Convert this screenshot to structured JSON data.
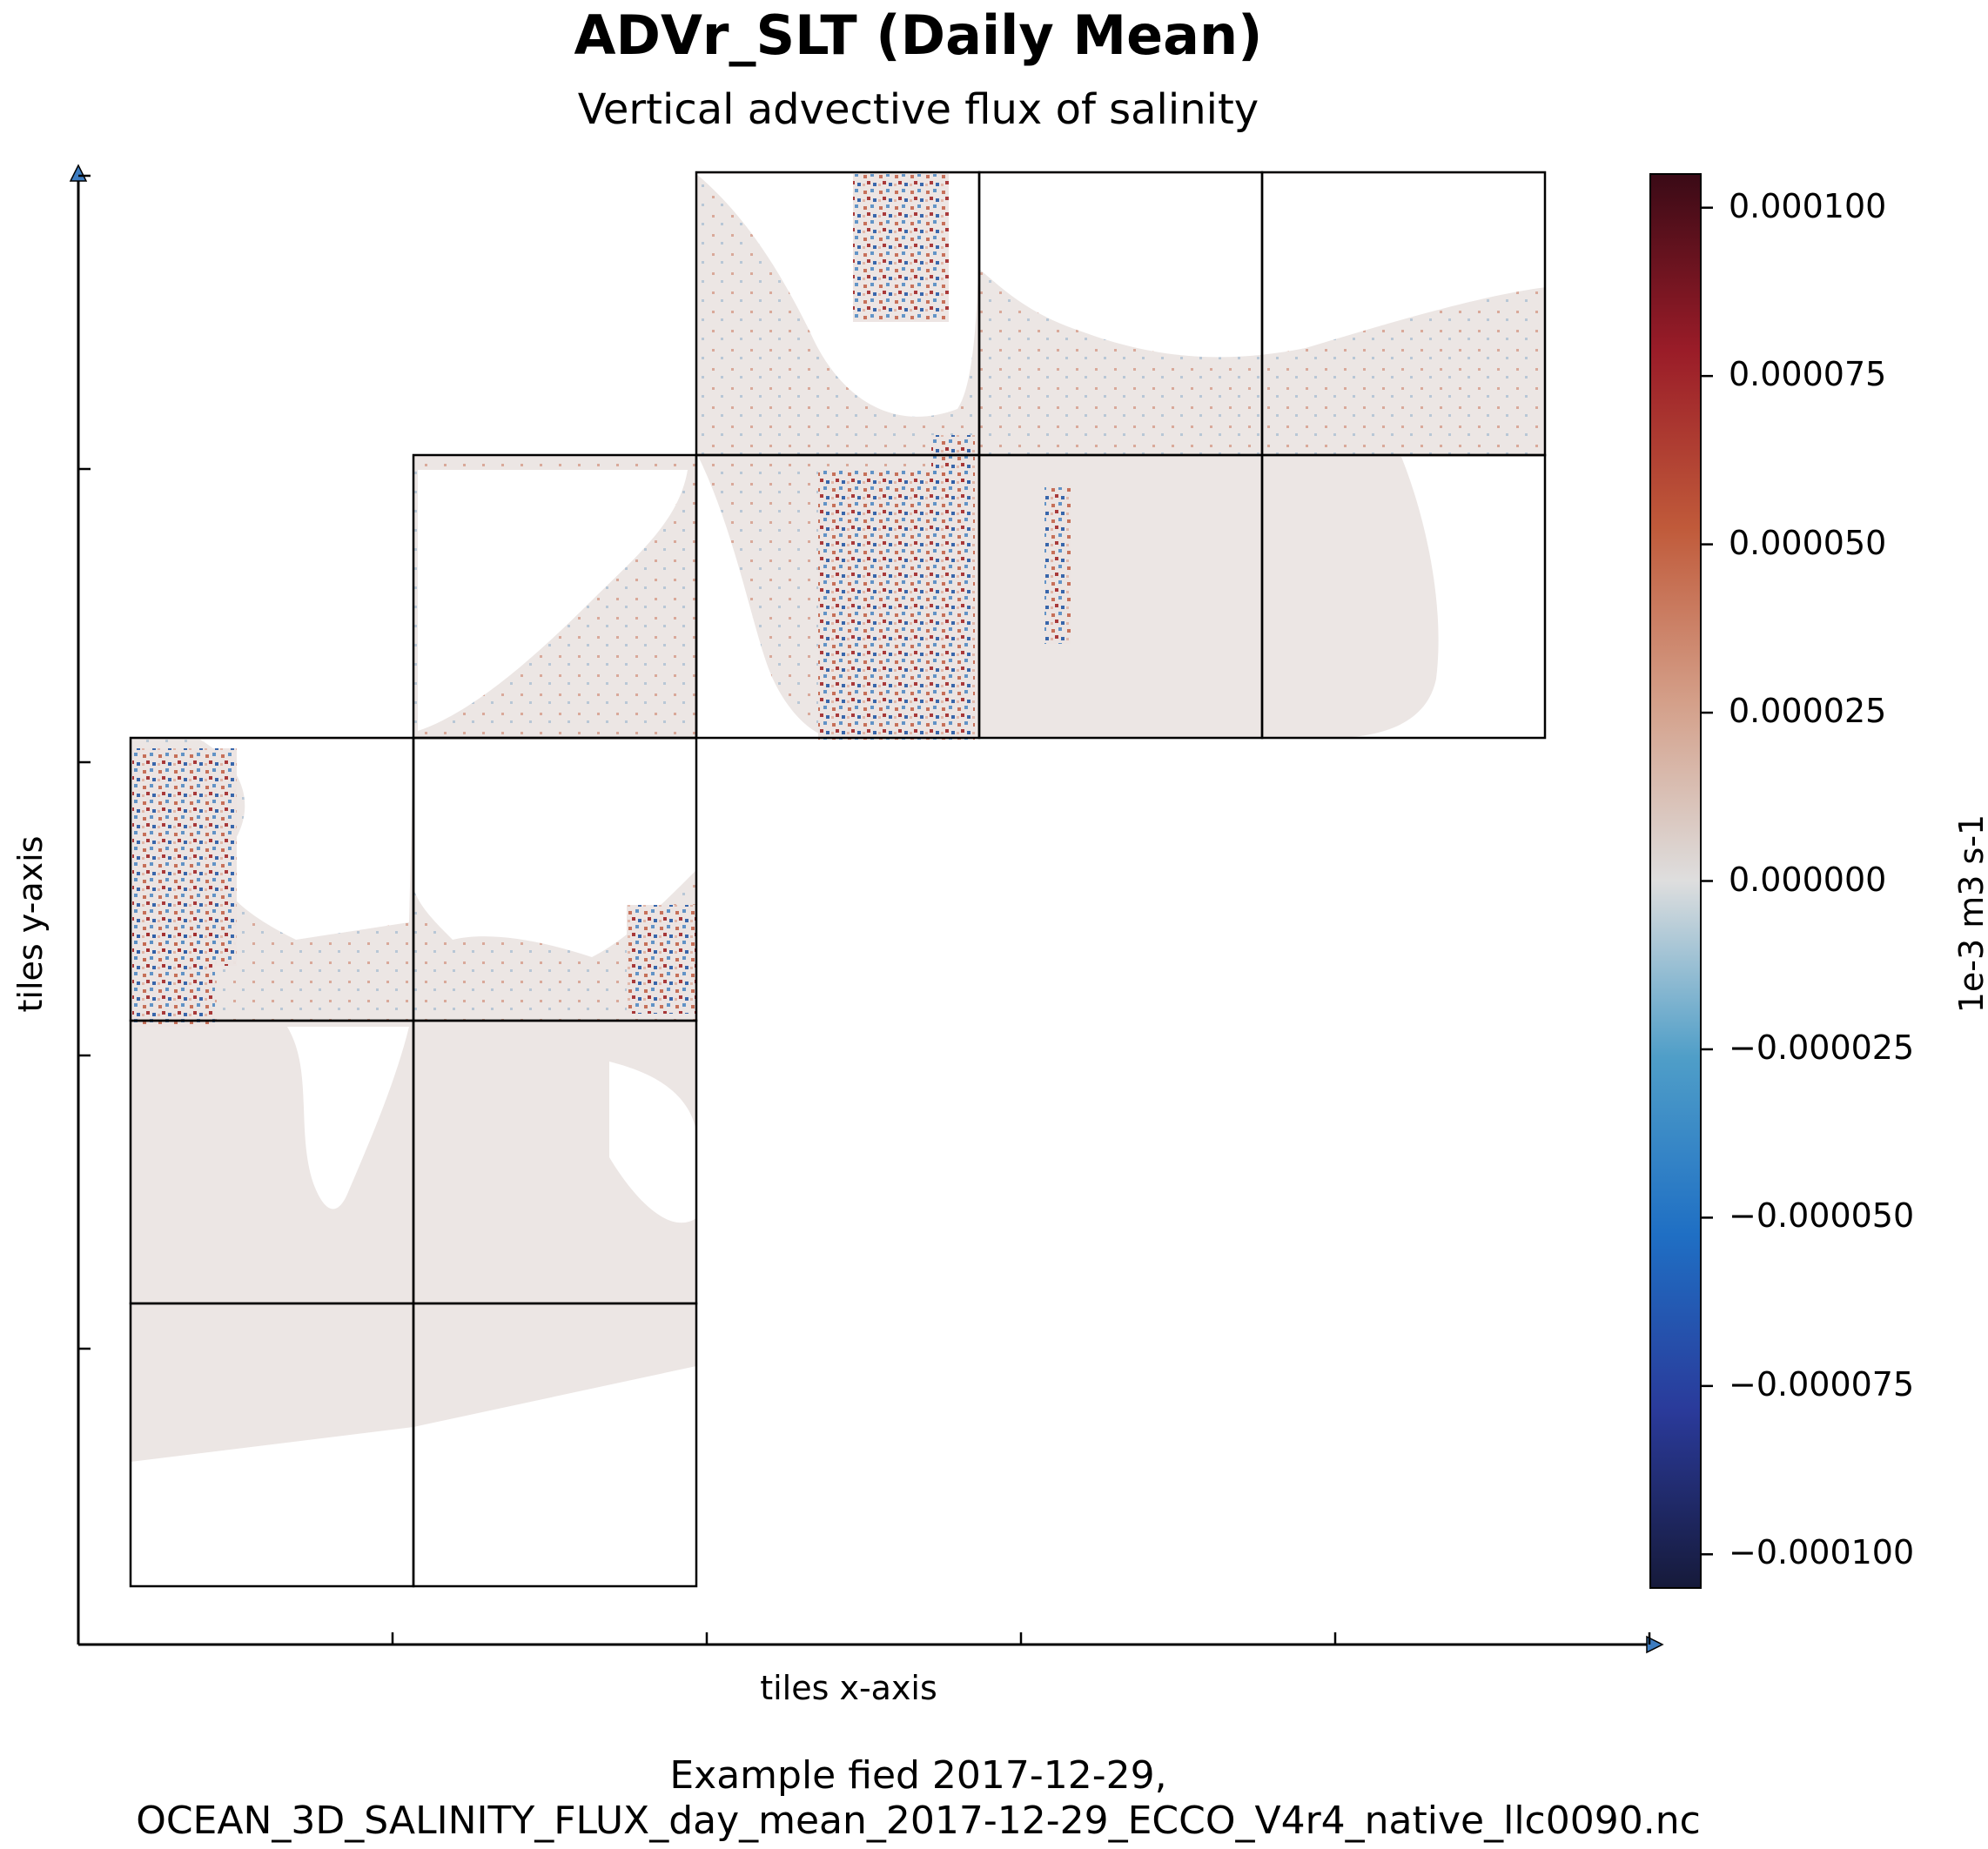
{
  "chart_data": {
    "type": "heatmap",
    "title": "ADVr_SLT (Daily Mean)",
    "subtitle": "Vertical advective flux of salinity",
    "xlabel": "tiles x-axis",
    "ylabel": "tiles y-axis",
    "caption_lines": [
      "Example fied 2017-12-29,",
      "OCEAN_3D_SALINITY_FLUX_day_mean_2017-12-29_ECCO_V4r4_native_llc0090.nc"
    ],
    "colorbar": {
      "label": "1e-3 m3 s-1",
      "range": [
        -0.000105,
        0.000105
      ],
      "ticks": [
        {
          "value": 0.0001,
          "label": "0.000100"
        },
        {
          "value": 7.5e-05,
          "label": "0.000075"
        },
        {
          "value": 5e-05,
          "label": "0.000050"
        },
        {
          "value": 2.5e-05,
          "label": "0.000025"
        },
        {
          "value": 0.0,
          "label": "0.000000"
        },
        {
          "value": -2.5e-05,
          "label": "−0.000025"
        },
        {
          "value": -5e-05,
          "label": "−0.000050"
        },
        {
          "value": -7.5e-05,
          "label": "−0.000075"
        },
        {
          "value": -0.0001,
          "label": "−0.000100"
        }
      ],
      "colors": [
        "#161a3a",
        "#2a3a9a",
        "#1f6fc4",
        "#4f9ec8",
        "#dedede",
        "#d4a08a",
        "#c05a3a",
        "#9a1c28",
        "#3a0a16"
      ]
    },
    "tiles": [
      {
        "col": 0,
        "row": 0
      },
      {
        "col": 1,
        "row": 0
      },
      {
        "col": 0,
        "row": 1
      },
      {
        "col": 1,
        "row": 1
      },
      {
        "col": 0,
        "row": 2
      },
      {
        "col": 1,
        "row": 2
      },
      {
        "col": 1,
        "row": 3
      },
      {
        "col": 2,
        "row": 3
      },
      {
        "col": 3,
        "row": 3
      },
      {
        "col": 4,
        "row": 3
      },
      {
        "col": 2,
        "row": 4
      },
      {
        "col": 3,
        "row": 4
      },
      {
        "col": 4,
        "row": 4
      }
    ],
    "x_tick_count": 6,
    "y_tick_count": 6,
    "grid": false,
    "legend": "colorbar-right"
  }
}
